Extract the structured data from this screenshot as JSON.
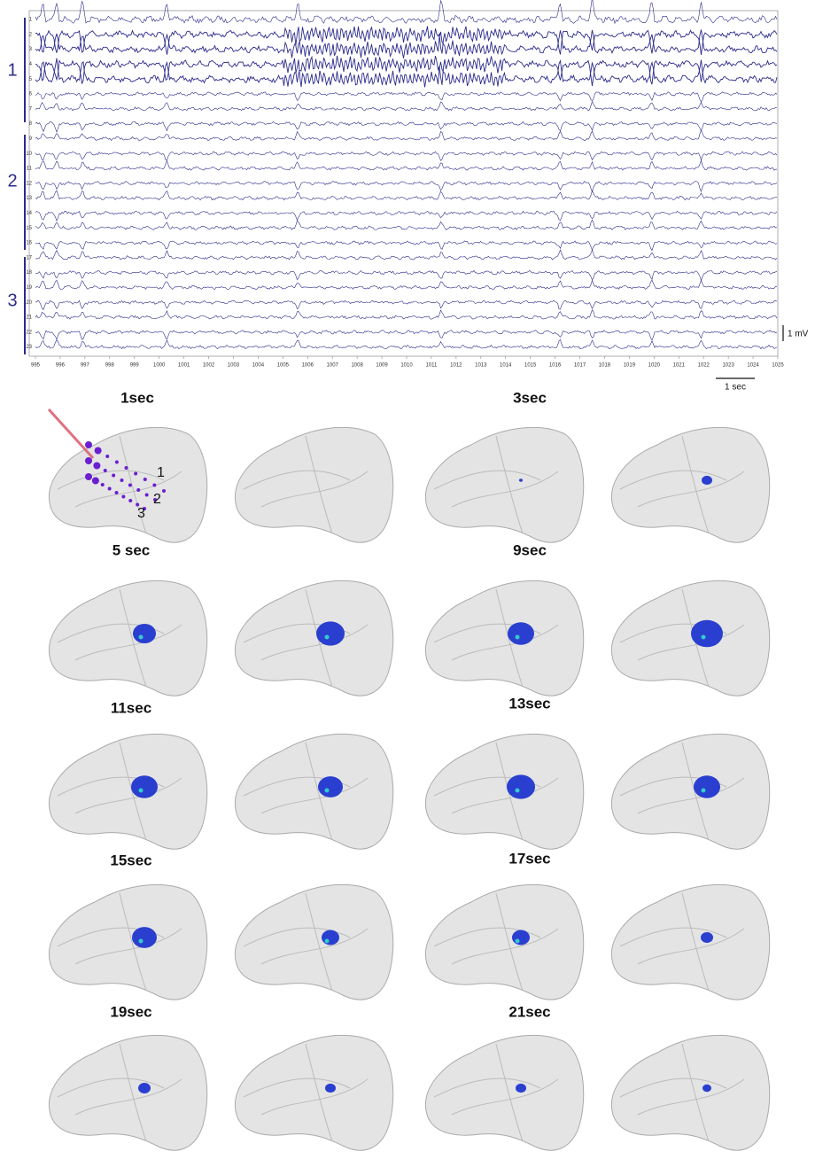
{
  "eeg": {
    "groups": [
      1,
      2,
      3
    ],
    "channels": [
      1,
      2,
      3,
      4,
      5,
      6,
      7,
      8,
      9,
      10,
      11,
      12,
      13,
      14,
      15,
      16,
      17,
      18,
      19,
      20,
      21,
      22,
      23
    ],
    "time_ticks": [
      995,
      996,
      997,
      998,
      999,
      1000,
      1001,
      1002,
      1003,
      1004,
      1005,
      1006,
      1007,
      1008,
      1009,
      1010,
      1011,
      1012,
      1013,
      1014,
      1015,
      1016,
      1017,
      1018,
      1019,
      1020,
      1021,
      1022,
      1023,
      1024,
      1025
    ],
    "scale_voltage": "1 mV",
    "scale_time": "1 sec"
  },
  "panels": {
    "time_labels": [
      "1sec",
      "3sec",
      "5 sec",
      "9sec",
      "11sec",
      "13sec",
      "15sec",
      "17sec",
      "19sec",
      "21sec"
    ]
  },
  "electrodes": [
    1,
    2,
    3
  ]
}
